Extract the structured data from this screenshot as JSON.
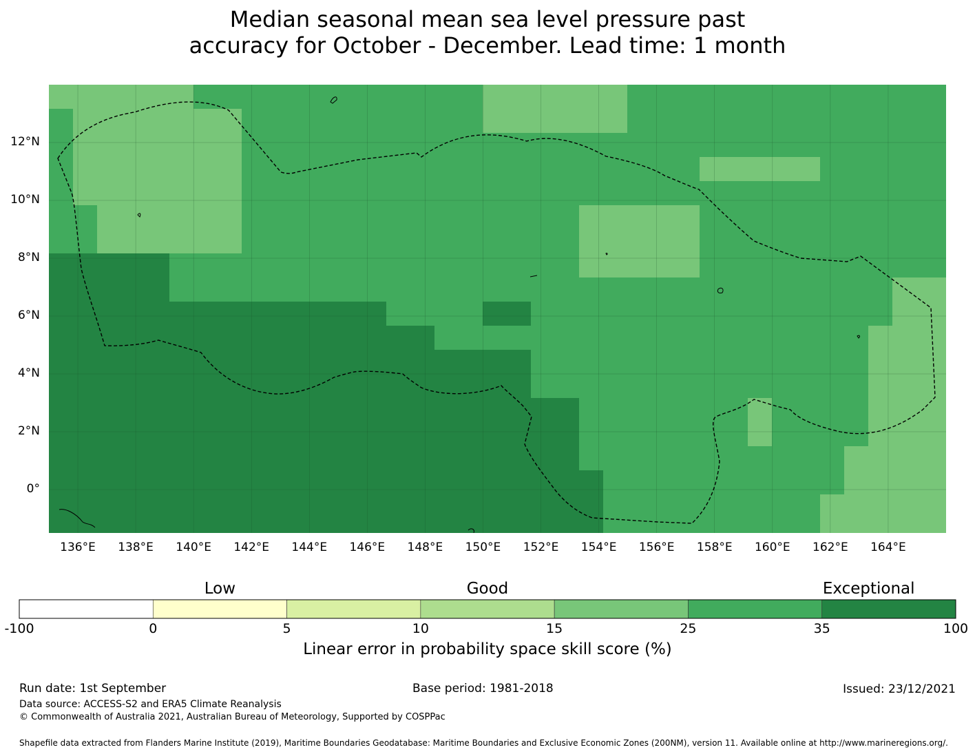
{
  "title": {
    "line1": "Median seasonal mean sea level pressure past",
    "line2": "accuracy for October - December. Lead time: 1 month"
  },
  "map": {
    "lat_labels": [
      "12°N",
      "10°N",
      "8°N",
      "6°N",
      "4°N",
      "2°N",
      "0°"
    ],
    "lon_labels": [
      "136°E",
      "138°E",
      "140°E",
      "142°E",
      "144°E",
      "146°E",
      "148°E",
      "150°E",
      "152°E",
      "154°E",
      "156°E",
      "158°E",
      "160°E",
      "162°E",
      "164°E"
    ],
    "lon_range_deg_e": [
      135,
      166
    ],
    "lat_range_deg_n": [
      -1.5,
      14
    ],
    "boundary": "dashed EEZ outline"
  },
  "colorbar": {
    "categories": [
      "Low",
      "Good",
      "Exceptional"
    ],
    "tick_labels": [
      "-100",
      "0",
      "5",
      "10",
      "15",
      "25",
      "35",
      "100"
    ],
    "colors": [
      "#ffffff",
      "#ffffcc",
      "#d9f0a3",
      "#addd8e",
      "#78c679",
      "#41ab5d",
      "#238443"
    ],
    "label": "Linear error in probability space skill score (%)"
  },
  "footer": {
    "run_date": "Run date: 1st September",
    "base_period": "Base period: 1981-2018",
    "issued": "Issued: 23/12/2021",
    "data_source": "Data source: ACCESS-S2 and ERA5 Climate Reanalysis",
    "copyright": "© Commonwealth of Australia 2021, Australian Bureau of Meteorology, Supported by COSPPac",
    "shapefile": "Shapefile data extracted from Flanders Marine Institute (2019), Maritime Boundaries Geodatabase: Maritime Boundaries and Exclusive Economic Zones (200NM), version 11. Available online at http://www.marineregions.org/."
  }
}
